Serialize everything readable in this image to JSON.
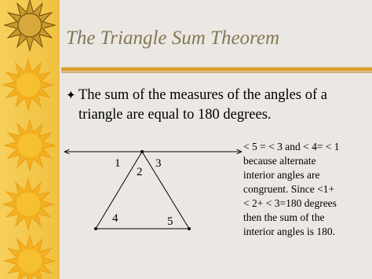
{
  "title": "The Triangle Sum Theorem",
  "bullet": {
    "lines": [
      "The sum of the measures of the angles of a",
      "triangle are equal to 180 degrees."
    ]
  },
  "diagram": {
    "labels": [
      "1",
      "2",
      "3",
      "4",
      "5"
    ]
  },
  "note": {
    "lines": [
      "< 5 = < 3 and < 4= < 1",
      "because alternate",
      "interior angles are",
      "congruent. Since <1+",
      "< 2+ < 3=180 degrees",
      "then the sum of the",
      "interior angles is 180."
    ]
  }
}
